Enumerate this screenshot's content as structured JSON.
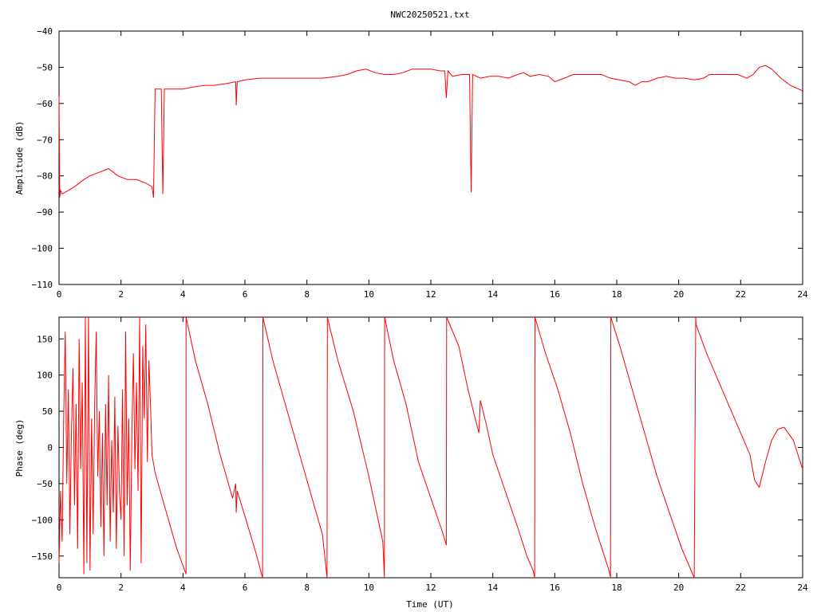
{
  "title": "NWC20250521.txt",
  "colors": {
    "series": "#ff0000",
    "axes": "#000000",
    "background": "#ffffff"
  },
  "chart_data": [
    {
      "type": "line",
      "ylabel": "Amplitude (dB)",
      "xlabel": "",
      "xlim": [
        0,
        24
      ],
      "ylim": [
        -110,
        -40
      ],
      "xticks": [
        0,
        2,
        4,
        6,
        8,
        10,
        12,
        14,
        16,
        18,
        20,
        22,
        24
      ],
      "yticks": [
        -110,
        -100,
        -90,
        -80,
        -70,
        -60,
        -50,
        -40
      ],
      "grid": false,
      "x": [
        0,
        0.02,
        0.05,
        0.1,
        0.3,
        0.5,
        0.8,
        1.0,
        1.3,
        1.6,
        1.9,
        2.2,
        2.5,
        2.8,
        3.0,
        3.05,
        3.1,
        3.3,
        3.35,
        3.4,
        3.7,
        4.0,
        4.3,
        4.7,
        5.0,
        5.4,
        5.7,
        5.72,
        5.75,
        6.0,
        6.5,
        7.0,
        7.5,
        8.0,
        8.5,
        9.0,
        9.3,
        9.6,
        9.9,
        10.2,
        10.5,
        10.8,
        11.1,
        11.4,
        11.7,
        12.0,
        12.3,
        12.45,
        12.5,
        12.55,
        12.7,
        13.0,
        13.25,
        13.3,
        13.35,
        13.6,
        13.9,
        14.2,
        14.5,
        14.8,
        15.0,
        15.2,
        15.5,
        15.8,
        16.0,
        16.3,
        16.6,
        16.9,
        17.2,
        17.5,
        17.8,
        18.1,
        18.4,
        18.6,
        18.8,
        19.0,
        19.3,
        19.6,
        19.9,
        20.2,
        20.5,
        20.8,
        21.0,
        21.3,
        21.6,
        21.9,
        22.2,
        22.4,
        22.6,
        22.8,
        23.0,
        23.3,
        23.6,
        24.0
      ],
      "y": [
        -58,
        -86,
        -84,
        -85,
        -84,
        -83,
        -81,
        -80,
        -79,
        -78,
        -80,
        -81,
        -81,
        -82,
        -83,
        -86,
        -56,
        -56,
        -85,
        -56,
        -56,
        -56,
        -55.5,
        -55,
        -55,
        -54.5,
        -54,
        -60.5,
        -54,
        -53.5,
        -53,
        -53,
        -53,
        -53,
        -53,
        -52.5,
        -52,
        -51,
        -50.5,
        -51.5,
        -52,
        -52,
        -51.5,
        -50.5,
        -50.5,
        -50.5,
        -51,
        -51,
        -58.5,
        -51,
        -52.5,
        -52,
        -52,
        -84.5,
        -52,
        -53,
        -52.5,
        -52.5,
        -53,
        -52,
        -51.5,
        -52.5,
        -52,
        -52.5,
        -54,
        -53,
        -52,
        -52,
        -52,
        -52,
        -53,
        -53.5,
        -54,
        -55,
        -54,
        -54,
        -53,
        -52.5,
        -53,
        -53,
        -53.5,
        -53,
        -52,
        -52,
        -52,
        -52,
        -53,
        -52,
        -50,
        -49.5,
        -50.5,
        -53,
        -55,
        -56.5
      ]
    },
    {
      "type": "line",
      "ylabel": "Phase (deg)",
      "xlabel": "Time (UT)",
      "xlim": [
        0,
        24
      ],
      "ylim": [
        -180,
        180
      ],
      "xticks": [
        0,
        2,
        4,
        6,
        8,
        10,
        12,
        14,
        16,
        18,
        20,
        22,
        24
      ],
      "yticks": [
        -150,
        -100,
        -50,
        0,
        50,
        100,
        150
      ],
      "grid": false,
      "x": [
        0,
        0.05,
        0.1,
        0.15,
        0.2,
        0.25,
        0.3,
        0.35,
        0.4,
        0.45,
        0.5,
        0.55,
        0.6,
        0.65,
        0.7,
        0.75,
        0.8,
        0.85,
        0.9,
        0.95,
        1.0,
        1.05,
        1.1,
        1.15,
        1.2,
        1.25,
        1.3,
        1.35,
        1.4,
        1.45,
        1.5,
        1.55,
        1.6,
        1.65,
        1.7,
        1.75,
        1.8,
        1.85,
        1.9,
        1.95,
        2.0,
        2.05,
        2.1,
        2.15,
        2.2,
        2.25,
        2.3,
        2.35,
        2.4,
        2.45,
        2.5,
        2.55,
        2.6,
        2.65,
        2.7,
        2.75,
        2.8,
        2.85,
        2.9,
        2.95,
        3.0,
        3.1,
        3.4,
        3.8,
        4.1,
        4.1,
        4.4,
        4.8,
        5.2,
        5.6,
        5.7,
        5.72,
        5.75,
        6.0,
        6.35,
        6.57,
        6.58,
        6.9,
        7.3,
        7.7,
        8.1,
        8.5,
        8.65,
        8.66,
        9.0,
        9.5,
        10.0,
        10.45,
        10.5,
        10.51,
        10.8,
        11.2,
        11.6,
        12.0,
        12.4,
        12.5,
        12.51,
        12.9,
        13.2,
        13.4,
        13.55,
        13.6,
        13.8,
        14.0,
        14.4,
        14.8,
        15.1,
        15.3,
        15.35,
        15.36,
        15.7,
        16.1,
        16.5,
        16.9,
        17.3,
        17.75,
        17.8,
        17.81,
        18.1,
        18.5,
        18.9,
        19.3,
        19.7,
        20.1,
        20.5,
        20.55,
        20.56,
        20.9,
        21.3,
        21.7,
        22.0,
        22.3,
        22.45,
        22.6,
        22.8,
        23.0,
        23.2,
        23.4,
        23.7,
        24.0
      ],
      "y": [
        -160,
        -60,
        -130,
        40,
        160,
        -50,
        80,
        -120,
        20,
        110,
        -80,
        60,
        -140,
        150,
        -30,
        90,
        -175,
        180,
        -160,
        180,
        -170,
        40,
        -120,
        60,
        160,
        -40,
        50,
        -110,
        20,
        -150,
        60,
        -80,
        100,
        -130,
        10,
        -90,
        70,
        -140,
        30,
        -60,
        -100,
        80,
        -150,
        160,
        -80,
        40,
        -170,
        20,
        130,
        -30,
        90,
        -60,
        180,
        -160,
        140,
        40,
        170,
        -20,
        120,
        60,
        -10,
        -35,
        -80,
        -140,
        -175,
        180,
        120,
        60,
        -10,
        -70,
        -50,
        -90,
        -60,
        -95,
        -145,
        -180,
        180,
        120,
        60,
        0,
        -60,
        -120,
        -180,
        180,
        120,
        50,
        -40,
        -130,
        -180,
        180,
        120,
        60,
        -20,
        -70,
        -120,
        -135,
        180,
        140,
        80,
        45,
        20,
        65,
        30,
        -10,
        -60,
        -110,
        -150,
        -170,
        -180,
        180,
        130,
        80,
        20,
        -50,
        -110,
        -170,
        -180,
        180,
        140,
        80,
        20,
        -40,
        -90,
        -140,
        -180,
        180,
        170,
        130,
        90,
        50,
        20,
        -10,
        -45,
        -55,
        -20,
        10,
        25,
        28,
        10,
        -30
      ]
    }
  ]
}
